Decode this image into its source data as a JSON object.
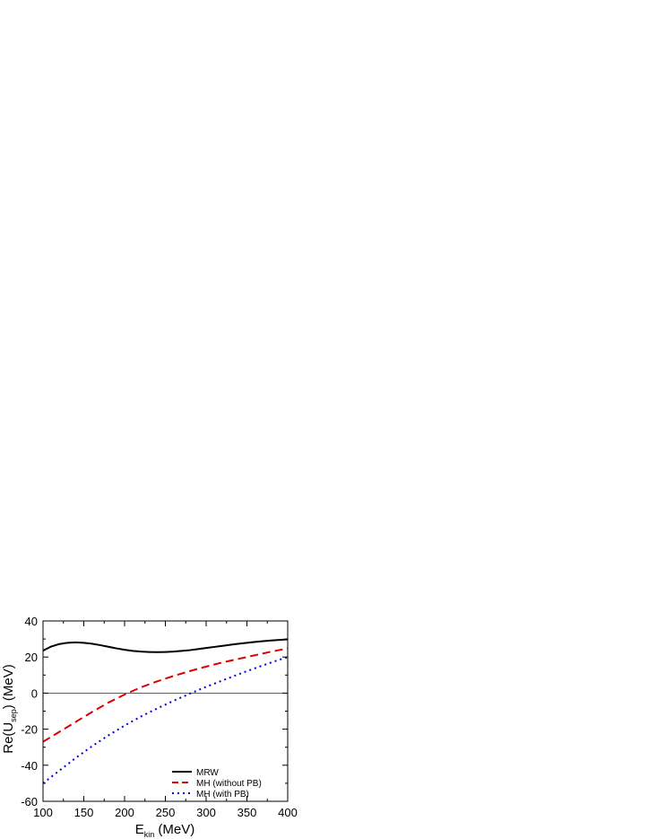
{
  "chart_data": {
    "type": "line",
    "xlabel": {
      "main": "E",
      "sub": "kin",
      "rest": " (MeV)"
    },
    "ylabel": {
      "main": "Re(U",
      "sub": "sep",
      "rest": ") (MeV)"
    },
    "xlim": [
      100,
      400
    ],
    "ylim": [
      -60,
      40
    ],
    "xticks": [
      100,
      150,
      200,
      250,
      300,
      350,
      400
    ],
    "yticks": [
      -60,
      -40,
      -20,
      0,
      20,
      40
    ],
    "zero_line": true,
    "grid": false,
    "legend_position": "bottom-right",
    "series": [
      {
        "name": "MRW",
        "color": "#000000",
        "style": "solid",
        "x": [
          100,
          110,
          120,
          130,
          140,
          150,
          160,
          170,
          180,
          190,
          200,
          210,
          220,
          230,
          240,
          250,
          260,
          270,
          280,
          290,
          300,
          310,
          320,
          330,
          340,
          350,
          360,
          370,
          380,
          390,
          400
        ],
        "y": [
          23.5,
          25.8,
          27.2,
          27.9,
          28.1,
          27.9,
          27.4,
          26.6,
          25.7,
          24.8,
          24.0,
          23.4,
          23.0,
          22.8,
          22.7,
          22.8,
          23.0,
          23.4,
          23.8,
          24.4,
          25.0,
          25.6,
          26.2,
          26.8,
          27.4,
          27.9,
          28.4,
          28.8,
          29.2,
          29.5,
          29.8
        ]
      },
      {
        "name": "MH (without PB)",
        "color": "#dd0000",
        "style": "dashed",
        "x": [
          100,
          120,
          140,
          160,
          180,
          200,
          220,
          240,
          260,
          280,
          300,
          320,
          340,
          360,
          380,
          400
        ],
        "y": [
          -27.0,
          -21.5,
          -16.0,
          -10.5,
          -5.3,
          -0.8,
          3.2,
          6.5,
          9.5,
          12.2,
          14.7,
          17.0,
          19.0,
          21.0,
          23.0,
          24.8
        ]
      },
      {
        "name": "MH (with PB)",
        "color": "#0000dd",
        "style": "dotted",
        "x": [
          100,
          120,
          140,
          160,
          180,
          200,
          220,
          240,
          260,
          280,
          300,
          320,
          340,
          360,
          380,
          400
        ],
        "y": [
          -50.0,
          -43.0,
          -36.0,
          -29.5,
          -23.5,
          -18.0,
          -13.0,
          -8.5,
          -4.3,
          -0.3,
          3.5,
          7.0,
          10.5,
          13.8,
          17.0,
          20.0
        ]
      }
    ]
  }
}
